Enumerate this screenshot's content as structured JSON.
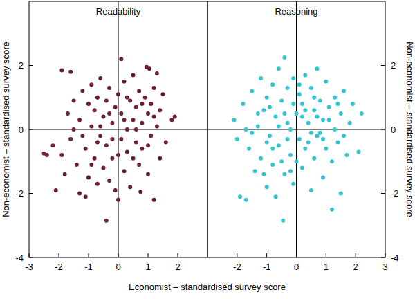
{
  "chart_data": [
    {
      "type": "scatter",
      "title": "Readability",
      "xlabel": "Economist – standardised survey score",
      "ylabel": "Non-economist – standardised survey score",
      "color": "#6b1f3f",
      "marker": "circle",
      "xlim": [
        -3,
        3
      ],
      "xticks": [
        -3,
        -2,
        -1,
        0,
        1,
        2
      ],
      "ylim": [
        -4,
        4
      ],
      "yticks": [
        -4,
        -2,
        0,
        2
      ],
      "x": [
        -2.5,
        -2.4,
        -2.2,
        -2.1,
        -1.9,
        -1.6,
        -1.9,
        -1.8,
        -1.7,
        -1.6,
        -1.5,
        -1.4,
        -1.3,
        -1.3,
        -1.2,
        -1.1,
        -1.1,
        -1.0,
        -1.0,
        -0.9,
        -0.9,
        -0.8,
        -0.8,
        -0.7,
        -0.7,
        -0.6,
        -0.6,
        -0.5,
        -0.5,
        -0.4,
        -0.4,
        -0.4,
        -0.3,
        -0.3,
        -0.2,
        -0.2,
        -0.1,
        -0.1,
        0.0,
        0.1,
        0.0,
        0.1,
        0.1,
        0.2,
        0.2,
        0.3,
        0.3,
        0.4,
        0.4,
        0.5,
        0.5,
        0.6,
        0.6,
        0.7,
        0.75,
        0.7,
        0.8,
        0.8,
        0.9,
        0.95,
        1.0,
        1.0,
        1.05,
        1.1,
        1.1,
        1.2,
        1.2,
        1.3,
        1.3,
        1.4,
        1.4,
        1.5,
        1.6,
        1.8,
        1.9,
        -1.2,
        -0.9,
        -0.6,
        -0.3,
        0.0,
        0.2,
        0.5,
        0.8,
        1.2,
        -1.5,
        -0.2,
        0.6,
        1.0,
        -0.7,
        0.3
      ],
      "values": [
        -0.75,
        -0.8,
        -0.5,
        -1.9,
        1.85,
        1.8,
        -0.8,
        -1.4,
        0.5,
        -0.3,
        0.9,
        -1.1,
        -2.0,
        0.3,
        1.2,
        -2.1,
        -0.6,
        0.8,
        -1.5,
        0.1,
        1.4,
        -0.9,
        0.6,
        -1.7,
        1.0,
        -0.2,
        1.6,
        -1.2,
        0.4,
        -2.85,
        0.9,
        -0.5,
        1.3,
        -1.6,
        0.2,
        -0.9,
        0.7,
        -1.9,
        -2.2,
        2.2,
        1.1,
        -0.3,
        0.5,
        -1.3,
        1.5,
        0.0,
        -0.7,
        0.9,
        -1.8,
        0.3,
        1.7,
        -0.4,
        0.7,
        -1.1,
        -1.95,
        1.2,
        0.2,
        -0.6,
        1.0,
        1.95,
        -1.4,
        0.5,
        1.9,
        -0.2,
        0.8,
        -2.2,
        1.3,
        1.75,
        0.1,
        -0.9,
        0.6,
        1.1,
        -0.4,
        0.3,
        0.4,
        -0.2,
        -1.1,
        0.1,
        0.5,
        -0.8,
        0.3,
        -0.9,
        0.8,
        0.4,
        0.0,
        -0.3,
        0.0,
        -0.5,
        -0.4,
        1.0
      ]
    },
    {
      "type": "scatter",
      "title": "Reasoning",
      "ylabel": "Non-economist – standardised survey score",
      "color": "#33c5d3",
      "marker": "circle",
      "xlim": [
        -3,
        3
      ],
      "xticks": [
        -2,
        -1,
        0,
        1,
        2,
        3
      ],
      "ylim": [
        -4,
        4
      ],
      "yticks": [
        -4,
        -2,
        0,
        2
      ],
      "x": [
        -2.1,
        -2.0,
        -1.9,
        -1.7,
        -1.8,
        -1.6,
        -1.5,
        -1.4,
        -1.3,
        -1.2,
        -1.2,
        -1.1,
        -1.0,
        -1.0,
        -0.9,
        -0.8,
        -0.8,
        -0.7,
        -0.7,
        -0.6,
        -0.6,
        -0.5,
        -0.45,
        -0.4,
        -0.4,
        -0.3,
        -0.3,
        -0.2,
        -0.1,
        -0.1,
        0.0,
        0.1,
        0.1,
        0.2,
        0.2,
        0.3,
        0.3,
        0.4,
        0.5,
        0.5,
        0.6,
        0.6,
        0.7,
        0.7,
        0.8,
        0.9,
        0.9,
        1.0,
        1.0,
        1.1,
        1.2,
        1.2,
        1.3,
        1.3,
        1.4,
        1.5,
        1.5,
        1.6,
        1.7,
        1.8,
        1.9,
        2.1,
        2.2,
        -1.5,
        -1.0,
        -0.6,
        -0.2,
        0.2,
        0.4,
        0.8,
        -0.9,
        -0.3,
        0.0,
        0.6,
        1.1,
        -1.3,
        -0.5,
        0.3,
        0.9,
        -0.1,
        1.4,
        -1.7,
        -0.8,
        0.5,
        1.6,
        -0.4,
        0.1,
        -1.1,
        0.7,
        -0.2
      ],
      "values": [
        0.3,
        -0.3,
        -2.1,
        -2.2,
        0.8,
        -0.6,
        1.2,
        -1.3,
        0.1,
        1.6,
        -0.9,
        0.6,
        -1.8,
        1.0,
        -0.2,
        1.4,
        -1.1,
        0.4,
        -2.1,
        1.9,
        -0.5,
        0.9,
        -2.85,
        2.25,
        -1.4,
        0.2,
        1.3,
        -0.8,
        1.6,
        -1.7,
        0.5,
        -0.3,
        1.1,
        -1.2,
        0.8,
        1.7,
        -0.6,
        0.2,
        -1.9,
        1.3,
        0.6,
        -0.9,
        1.9,
        -0.2,
        0.9,
        -1.5,
        0.3,
        1.5,
        -0.6,
        0.7,
        -2.5,
        -1.0,
        1.0,
        0.0,
        -0.4,
        -2.0,
        0.5,
        1.2,
        -0.8,
        0.2,
        0.8,
        -0.7,
        0.5,
        -0.1,
        -0.4,
        0.1,
        0.0,
        0.4,
        -0.4,
        -0.1,
        0.7,
        -0.3,
        -1.0,
        1.0,
        0.3,
        0.5,
        -1.0,
        0.6,
        -0.3,
        0.8,
        0.8,
        0.0,
        -0.6,
        -0.1,
        -0.2,
        0.5,
        1.4,
        -1.4,
        0.4,
        -1.3
      ]
    }
  ]
}
